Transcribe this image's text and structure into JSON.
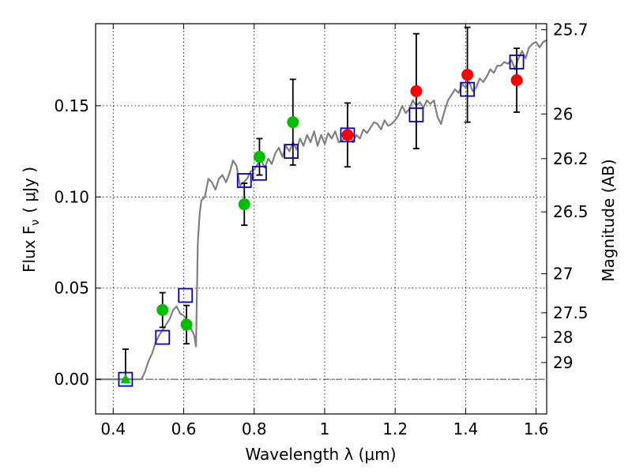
{
  "chart_data": {
    "type": "scatter",
    "xlabel": "Wavelength  λ (μm)",
    "ylabel": "Flux  F",
    "ylabel_sub": "ν",
    "ylabel_unit": "( μJy )",
    "y2label": "Magnitude (AB)",
    "xlim": [
      0.35,
      1.63
    ],
    "ylim": [
      -0.019,
      0.195
    ],
    "grid": true,
    "x_ticks": [
      0.4,
      0.6,
      0.8,
      1.0,
      1.2,
      1.4,
      1.6
    ],
    "x_tick_labels": [
      "0.4",
      "0.6",
      "0.8",
      "1",
      "1.2",
      "1.4",
      "1.6"
    ],
    "y_ticks": [
      0.0,
      0.05,
      0.1,
      0.15
    ],
    "y_tick_labels": [
      "0.00",
      "0.05",
      "0.10",
      "0.15"
    ],
    "mag_ticks": [
      {
        "label": "25.7",
        "flux": 0.1917
      },
      {
        "label": "26",
        "flux": 0.1455
      },
      {
        "label": "26.2",
        "flux": 0.121
      },
      {
        "label": "26.5",
        "flux": 0.0918
      },
      {
        "label": "27",
        "flux": 0.0579
      },
      {
        "label": "27.5",
        "flux": 0.0365
      },
      {
        "label": "28",
        "flux": 0.023
      },
      {
        "label": "29",
        "flux": 0.0092
      }
    ],
    "model_spectrum": {
      "name": "model SED",
      "color": "#808080",
      "x": [
        0.35,
        0.48,
        0.49,
        0.5,
        0.51,
        0.52,
        0.53,
        0.54,
        0.55,
        0.56,
        0.57,
        0.58,
        0.59,
        0.6,
        0.61,
        0.62,
        0.63,
        0.635,
        0.64,
        0.645,
        0.65,
        0.66,
        0.67,
        0.68,
        0.69,
        0.7,
        0.71,
        0.72,
        0.73,
        0.74,
        0.75,
        0.76,
        0.77,
        0.78,
        0.79,
        0.8,
        0.81,
        0.82,
        0.83,
        0.84,
        0.85,
        0.86,
        0.87,
        0.88,
        0.89,
        0.9,
        0.91,
        0.92,
        0.93,
        0.94,
        0.95,
        0.96,
        0.97,
        0.98,
        0.99,
        1.0,
        1.01,
        1.02,
        1.03,
        1.04,
        1.05,
        1.06,
        1.07,
        1.08,
        1.09,
        1.1,
        1.11,
        1.12,
        1.13,
        1.14,
        1.15,
        1.16,
        1.17,
        1.18,
        1.19,
        1.2,
        1.21,
        1.22,
        1.23,
        1.24,
        1.25,
        1.26,
        1.27,
        1.28,
        1.29,
        1.3,
        1.31,
        1.32,
        1.33,
        1.34,
        1.35,
        1.36,
        1.37,
        1.38,
        1.39,
        1.4,
        1.41,
        1.42,
        1.43,
        1.44,
        1.45,
        1.46,
        1.47,
        1.48,
        1.49,
        1.5,
        1.51,
        1.52,
        1.53,
        1.54,
        1.55,
        1.56,
        1.57,
        1.58,
        1.59,
        1.6,
        1.61,
        1.62,
        1.63
      ],
      "y": [
        0.0,
        0.0,
        0.004,
        0.01,
        0.014,
        0.02,
        0.024,
        0.027,
        0.03,
        0.033,
        0.038,
        0.04,
        0.036,
        0.035,
        0.032,
        0.028,
        0.024,
        0.018,
        0.075,
        0.09,
        0.098,
        0.1,
        0.11,
        0.108,
        0.104,
        0.11,
        0.112,
        0.108,
        0.113,
        0.12,
        0.117,
        0.106,
        0.108,
        0.11,
        0.114,
        0.115,
        0.118,
        0.12,
        0.116,
        0.121,
        0.118,
        0.124,
        0.127,
        0.122,
        0.128,
        0.125,
        0.13,
        0.126,
        0.132,
        0.128,
        0.134,
        0.13,
        0.136,
        0.128,
        0.134,
        0.129,
        0.135,
        0.132,
        0.136,
        0.13,
        0.131,
        0.133,
        0.135,
        0.13,
        0.134,
        0.132,
        0.137,
        0.135,
        0.138,
        0.141,
        0.14,
        0.137,
        0.142,
        0.139,
        0.14,
        0.142,
        0.145,
        0.15,
        0.146,
        0.148,
        0.153,
        0.15,
        0.152,
        0.149,
        0.153,
        0.151,
        0.153,
        0.144,
        0.14,
        0.147,
        0.153,
        0.156,
        0.159,
        0.157,
        0.162,
        0.16,
        0.163,
        0.158,
        0.16,
        0.165,
        0.163,
        0.166,
        0.17,
        0.168,
        0.172,
        0.172,
        0.174,
        0.173,
        0.175,
        0.17,
        0.176,
        0.18,
        0.176,
        0.182,
        0.184,
        0.185,
        0.182,
        0.185,
        0.186
      ]
    },
    "series": [
      {
        "name": "green points",
        "marker": "circle",
        "color": "#00bf00",
        "points": [
          {
            "x": 0.54,
            "y": 0.038,
            "err": 0.0095
          },
          {
            "x": 0.608,
            "y": 0.03,
            "err": 0.0105
          },
          {
            "x": 0.772,
            "y": 0.096,
            "err": 0.0115
          },
          {
            "x": 0.815,
            "y": 0.122,
            "err": 0.01
          },
          {
            "x": 0.91,
            "y": 0.141,
            "err": 0.0235
          }
        ]
      },
      {
        "name": "red points",
        "marker": "circle",
        "color": "#ff0000",
        "points": [
          {
            "x": 1.065,
            "y": 0.134,
            "err": 0.0175
          },
          {
            "x": 1.26,
            "y": 0.158,
            "err": 0.0315
          },
          {
            "x": 1.405,
            "y": 0.167,
            "err": 0.026
          },
          {
            "x": 1.545,
            "y": 0.164,
            "err": 0.0175
          }
        ]
      },
      {
        "name": "green triangle",
        "marker": "triangle",
        "color": "#00bf00",
        "points": [
          {
            "x": 0.435,
            "y": 0.0,
            "err_low": 0.0,
            "err_high": 0.0165
          }
        ]
      },
      {
        "name": "model photometry",
        "marker": "open-square",
        "color": "#0000cc",
        "points": [
          {
            "x": 0.435,
            "y": 0.0
          },
          {
            "x": 0.54,
            "y": 0.023
          },
          {
            "x": 0.605,
            "y": 0.046
          },
          {
            "x": 0.772,
            "y": 0.109
          },
          {
            "x": 0.815,
            "y": 0.113
          },
          {
            "x": 0.905,
            "y": 0.125
          },
          {
            "x": 1.065,
            "y": 0.134
          },
          {
            "x": 1.26,
            "y": 0.145
          },
          {
            "x": 1.405,
            "y": 0.159
          },
          {
            "x": 1.545,
            "y": 0.174
          }
        ]
      }
    ]
  }
}
